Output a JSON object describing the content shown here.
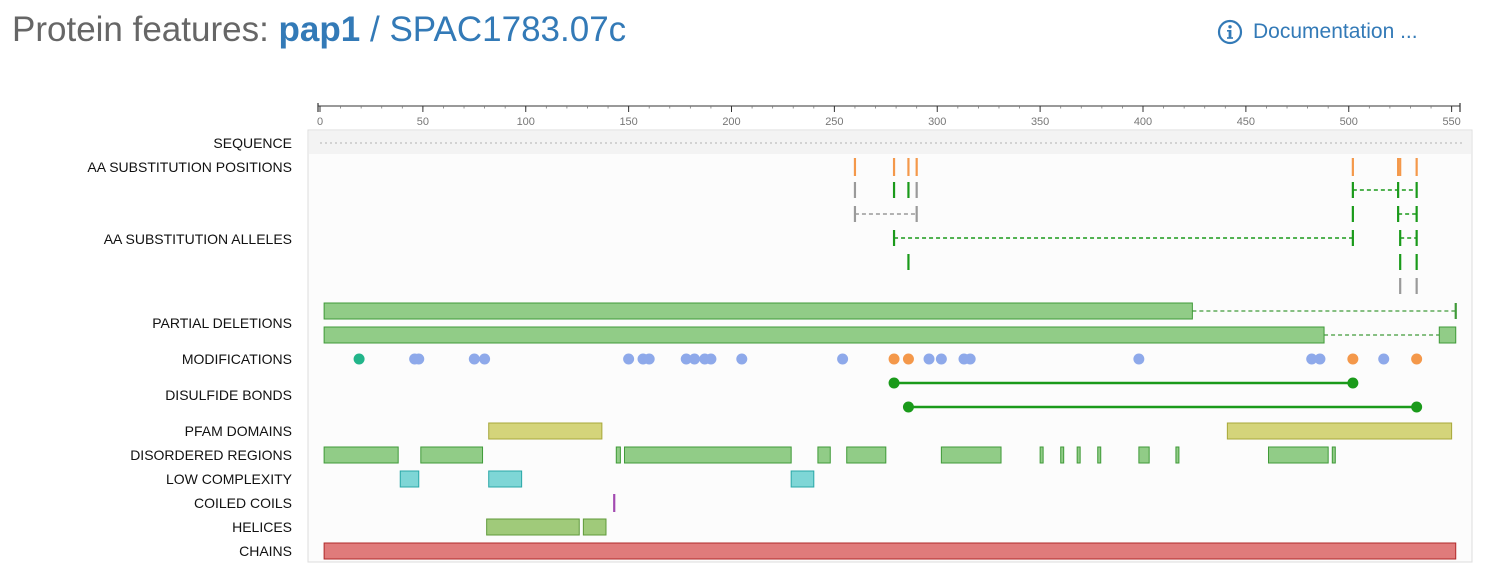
{
  "header": {
    "prefix": "Protein features: ",
    "gene_name": "pap1",
    "separator": "/",
    "systematic_id": "SPAC1783.07c",
    "doc_label": "Documentation ...",
    "doc_icon": "info-circle-icon"
  },
  "colors": {
    "green": "#91cc87",
    "green_stroke": "#3f9a38",
    "dark_green": "#1a9a1a",
    "orange": "#f4984a",
    "grey": "#9a9a9a",
    "blue": "#8ea9ea",
    "teal": "#22b58a",
    "olive": "#d4d47a",
    "olive_stroke": "#a7a73a",
    "cyan": "#7ed6d6",
    "cyan_stroke": "#29a7a7",
    "purple": "#a24ab1",
    "helix": "#a0ca7a",
    "helix_stroke": "#5f9a3a",
    "chain": "#e07b7b",
    "chain_stroke": "#b02a2a"
  },
  "chart_data": {
    "type": "protein-feature-viewer",
    "axis": {
      "min": 0,
      "max": 552,
      "ticks": [
        0,
        50,
        100,
        150,
        200,
        250,
        300,
        350,
        400,
        450,
        500,
        550
      ],
      "tick_labels": [
        "0",
        "50",
        "100",
        "150",
        "200",
        "250",
        "300",
        "350",
        "400",
        "450",
        "500",
        "550"
      ]
    },
    "tracks": {
      "sequence": {
        "label": "SEQUENCE"
      },
      "aa_substitution_positions": {
        "label": "AA SUBSTITUTION POSITIONS",
        "positions": [
          260,
          279,
          286,
          290,
          502,
          524,
          525,
          533
        ]
      },
      "aa_substitution_alleles": {
        "label": "AA SUBSTITUTION ALLELES",
        "rows": [
          [
            {
              "positions": [
                260
              ],
              "color": "grey"
            },
            {
              "positions": [
                279
              ],
              "color": "dark_green"
            },
            {
              "positions": [
                286
              ],
              "color": "dark_green"
            },
            {
              "positions": [
                290
              ],
              "color": "grey"
            },
            {
              "positions": [
                502,
                533
              ],
              "color": "dark_green"
            },
            {
              "positions": [
                524
              ],
              "color": "dark_green"
            }
          ],
          [
            {
              "positions": [
                260,
                290
              ],
              "color": "grey"
            },
            {
              "positions": [
                502
              ],
              "color": "dark_green"
            },
            {
              "positions": [
                524,
                533
              ],
              "color": "dark_green"
            }
          ],
          [
            {
              "positions": [
                279,
                502
              ],
              "color": "dark_green"
            },
            {
              "positions": [
                525,
                533
              ],
              "color": "dark_green"
            }
          ],
          [
            {
              "positions": [
                286
              ],
              "color": "dark_green"
            },
            {
              "positions": [
                525
              ],
              "color": "dark_green"
            },
            {
              "positions": [
                533
              ],
              "color": "dark_green"
            }
          ],
          [
            {
              "positions": [
                525
              ],
              "color": "grey"
            },
            {
              "positions": [
                533
              ],
              "color": "grey"
            }
          ]
        ]
      },
      "partial_deletions": {
        "label": "PARTIAL DELETIONS",
        "rows": [
          {
            "segments": [
              [
                2,
                424
              ],
              [
                552,
                552
              ]
            ]
          },
          {
            "segments": [
              [
                2,
                488
              ],
              [
                544,
                552
              ]
            ]
          }
        ]
      },
      "modifications": {
        "label": "MODIFICATIONS",
        "points": [
          {
            "pos": 19,
            "color": "teal"
          },
          {
            "pos": 46,
            "color": "blue"
          },
          {
            "pos": 48,
            "color": "blue"
          },
          {
            "pos": 75,
            "color": "blue"
          },
          {
            "pos": 80,
            "color": "blue"
          },
          {
            "pos": 150,
            "color": "blue"
          },
          {
            "pos": 157,
            "color": "blue"
          },
          {
            "pos": 160,
            "color": "blue"
          },
          {
            "pos": 178,
            "color": "blue"
          },
          {
            "pos": 182,
            "color": "blue"
          },
          {
            "pos": 187,
            "color": "blue"
          },
          {
            "pos": 190,
            "color": "blue"
          },
          {
            "pos": 205,
            "color": "blue"
          },
          {
            "pos": 254,
            "color": "blue"
          },
          {
            "pos": 279,
            "color": "orange"
          },
          {
            "pos": 286,
            "color": "orange"
          },
          {
            "pos": 296,
            "color": "blue"
          },
          {
            "pos": 302,
            "color": "blue"
          },
          {
            "pos": 313,
            "color": "blue"
          },
          {
            "pos": 316,
            "color": "blue"
          },
          {
            "pos": 398,
            "color": "blue"
          },
          {
            "pos": 482,
            "color": "blue"
          },
          {
            "pos": 486,
            "color": "blue"
          },
          {
            "pos": 502,
            "color": "orange"
          },
          {
            "pos": 517,
            "color": "blue"
          },
          {
            "pos": 533,
            "color": "orange"
          }
        ]
      },
      "disulfide_bonds": {
        "label": "DISULFIDE BONDS",
        "bonds": [
          [
            279,
            502
          ],
          [
            286,
            533
          ]
        ]
      },
      "pfam_domains": {
        "label": "PFAM DOMAINS",
        "segments": [
          [
            82,
            137
          ],
          [
            441,
            550
          ]
        ]
      },
      "disordered_regions": {
        "label": "DISORDERED REGIONS",
        "segments": [
          [
            2,
            38
          ],
          [
            49,
            79
          ],
          [
            144,
            146
          ],
          [
            148,
            229
          ],
          [
            242,
            248
          ],
          [
            256,
            275
          ],
          [
            302,
            331
          ],
          [
            350,
            351
          ],
          [
            360,
            361
          ],
          [
            368,
            369
          ],
          [
            378,
            379
          ],
          [
            398,
            403
          ],
          [
            416,
            417
          ],
          [
            461,
            490
          ],
          [
            492,
            493
          ]
        ]
      },
      "low_complexity": {
        "label": "LOW COMPLEXITY",
        "segments": [
          [
            39,
            48
          ],
          [
            82,
            98
          ],
          [
            229,
            240
          ]
        ]
      },
      "coiled_coils": {
        "label": "COILED COILS",
        "positions": [
          143
        ]
      },
      "helices": {
        "label": "HELICES",
        "segments": [
          [
            81,
            126
          ],
          [
            128,
            139
          ]
        ]
      },
      "chains": {
        "label": "CHAINS",
        "segments": [
          [
            2,
            552
          ]
        ]
      }
    }
  }
}
